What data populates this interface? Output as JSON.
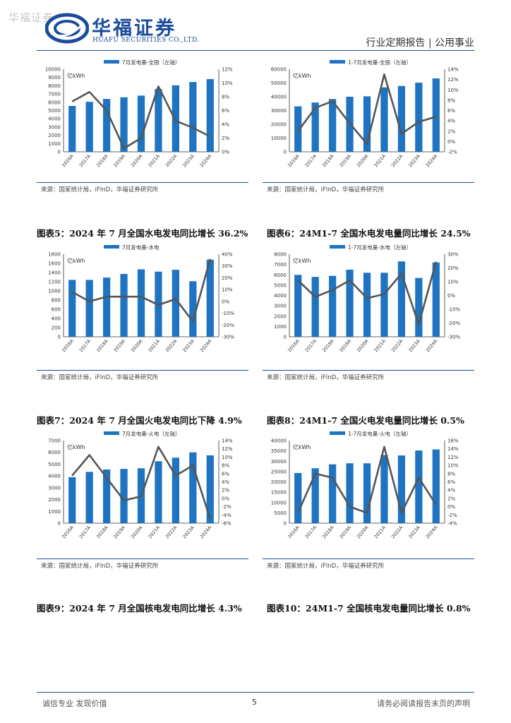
{
  "header": {
    "watermark": "华福证券",
    "brand_cn": "华福证券",
    "brand_en": "HUAFU SECURITIES CO.,LTD.",
    "right": "行业定期报告 | 公用事业",
    "brand_color": "#1a4b9c"
  },
  "colors": {
    "bar": "#1f74c1",
    "line": "#555555"
  },
  "charts": [
    {
      "unit": "亿kWh",
      "legend": "7月发电量-全国（左轴）",
      "source": "来源：国家统计局，iFInD，华福证券研究所",
      "caption": "",
      "chart_data": {
        "type": "bar+line",
        "categories": [
          "2016A",
          "2017A",
          "2018A",
          "2019A",
          "2020A",
          "2021A",
          "2022A",
          "2023A",
          "2024A"
        ],
        "series": [
          {
            "name": "7月发电量-全国（左轴）",
            "axis": "left",
            "values": [
              5550,
              6050,
              6400,
              6600,
              6800,
              7600,
              8050,
              8450,
              8800
            ]
          },
          {
            "axis": "right",
            "values": [
              7.3,
              8.7,
              6.0,
              0.5,
              2.0,
              9.5,
              4.5,
              3.5,
              2.2
            ]
          }
        ],
        "left_axis": {
          "min": 0,
          "max": 10000,
          "step": 1000
        },
        "right_axis": {
          "min": 0,
          "max": 12,
          "step": 2,
          "suffix": "%"
        }
      }
    },
    {
      "unit": "亿kWh",
      "legend": "1-7月发电量-全国（左轴）",
      "source": "来源：国家统计局，iFInD，华福证券研究所",
      "caption": "",
      "chart_data": {
        "type": "bar+line",
        "categories": [
          "2016A",
          "2017A",
          "2018A",
          "2019A",
          "2020A",
          "2021A",
          "2022A",
          "2023A",
          "2024A"
        ],
        "series": [
          {
            "name": "1-7月发电量-全国（左轴）",
            "axis": "left",
            "values": [
              33000,
              35800,
              38300,
              40000,
              40300,
              46800,
              47800,
              50200,
              53300
            ]
          },
          {
            "axis": "right",
            "values": [
              2,
              6.5,
              7.8,
              3.5,
              -0.5,
              13,
              1.5,
              3.8,
              4.8
            ]
          }
        ],
        "left_axis": {
          "min": 0,
          "max": 60000,
          "step": 10000
        },
        "right_axis": {
          "min": -2,
          "max": 14,
          "step": 2,
          "suffix": "%"
        }
      }
    },
    {
      "unit": "亿kWh",
      "legend": "7月发电量-水电",
      "source": "来源：国家统计局，iFInD，华福证券研究所",
      "caption": "图表5：2024 年 7 月全国水电发电同比增长 36.2%",
      "chart_data": {
        "type": "bar+line",
        "categories": [
          "2016A",
          "2017A",
          "2018A",
          "2019A",
          "2020A",
          "2021A",
          "2022A",
          "2023A",
          "2024A"
        ],
        "series": [
          {
            "name": "7月发电量-水电",
            "axis": "left",
            "values": [
              1240,
              1240,
              1290,
              1370,
              1470,
              1420,
              1460,
              1210,
              1680
            ]
          },
          {
            "axis": "right",
            "values": [
              8,
              0,
              4,
              4,
              4,
              -3,
              2,
              -17,
              36
            ]
          }
        ],
        "left_axis": {
          "min": 0,
          "max": 1800,
          "step": 200
        },
        "right_axis": {
          "min": -30,
          "max": 40,
          "step": 10,
          "suffix": "%"
        }
      }
    },
    {
      "unit": "亿kWh",
      "legend": "1-7月发电量-水电（左轴）",
      "source": "来源：国家统计局，iFInD，华福证券研究所",
      "caption": "图表6：24M1-7 全国水电发电量同比增长 24.5%",
      "chart_data": {
        "type": "bar+line",
        "categories": [
          "2016A",
          "2017A",
          "2018A",
          "2019A",
          "2020A",
          "2021A",
          "2022A",
          "2023A",
          "2024A"
        ],
        "series": [
          {
            "name": "1-7月发电量-水电（左轴）",
            "axis": "left",
            "values": [
              6000,
              5800,
              5900,
              6500,
              6200,
              6200,
              7300,
              5700,
              7200
            ]
          },
          {
            "axis": "right",
            "values": [
              11,
              -1,
              4,
              11,
              -2,
              1,
              16,
              -21,
              24.5
            ]
          }
        ],
        "left_axis": {
          "min": 0,
          "max": 8000,
          "step": 1000
        },
        "right_axis": {
          "min": -30,
          "max": 30,
          "step": 10,
          "suffix": "%"
        }
      }
    },
    {
      "unit": "亿kWh",
      "legend": "7月发电量-火电（左轴）",
      "source": "来源：国家统计局，iFInD，华福证券研究所",
      "caption": "图表7：2024 年 7 月全国火电发电同比下降 4.9%",
      "chart_data": {
        "type": "bar+line",
        "categories": [
          "2016A",
          "2017A",
          "2018A",
          "2019A",
          "2020A",
          "2021A",
          "2022A",
          "2023A",
          "2024A"
        ],
        "series": [
          {
            "name": "7月发电量-火电（左轴）",
            "axis": "left",
            "values": [
              3900,
              4350,
              4550,
              4600,
              4650,
              5250,
              5550,
              6000,
              5750
            ]
          },
          {
            "axis": "right",
            "values": [
              5.5,
              10.5,
              5,
              -0.5,
              0.5,
              12.5,
              5.5,
              8,
              -4.9
            ]
          }
        ],
        "left_axis": {
          "min": 0,
          "max": 7000,
          "step": 1000
        },
        "right_axis": {
          "min": -6,
          "max": 14,
          "step": 2,
          "suffix": "%"
        }
      }
    },
    {
      "unit": "亿kWh",
      "legend": "1-7月发电量-火电（左轴）",
      "source": "来源：国家统计局，iFInD，华福证券研究所",
      "caption": "图表8：24M1-7 全国火电发电量同比增长 0.5%",
      "chart_data": {
        "type": "bar+line",
        "categories": [
          "2016A",
          "2017A",
          "2018A",
          "2019A",
          "2020A",
          "2021A",
          "2022A",
          "2023A",
          "2024A"
        ],
        "series": [
          {
            "name": "1-7月发电量-火电（左轴）",
            "axis": "left",
            "values": [
              24300,
              26600,
              28500,
              29000,
              29000,
              33000,
              32800,
              35200,
              35700
            ]
          },
          {
            "axis": "right",
            "values": [
              -1.5,
              8,
              7,
              0,
              -1.5,
              14.5,
              -1.5,
              7,
              0.5
            ]
          }
        ],
        "left_axis": {
          "min": 0,
          "max": 40000,
          "step": 5000
        },
        "right_axis": {
          "min": -4,
          "max": 16,
          "step": 2,
          "suffix": "%"
        }
      }
    }
  ],
  "bottom_captions": [
    "图表9：2024 年 7 月全国核电发电同比增长 4.3%",
    "图表10：24M1-7 全国核电发电量同比增长 0.8%"
  ],
  "footer": {
    "left": "诚信专业  发现价值",
    "page": "5",
    "right": "请务必阅读报告末页的声明"
  }
}
